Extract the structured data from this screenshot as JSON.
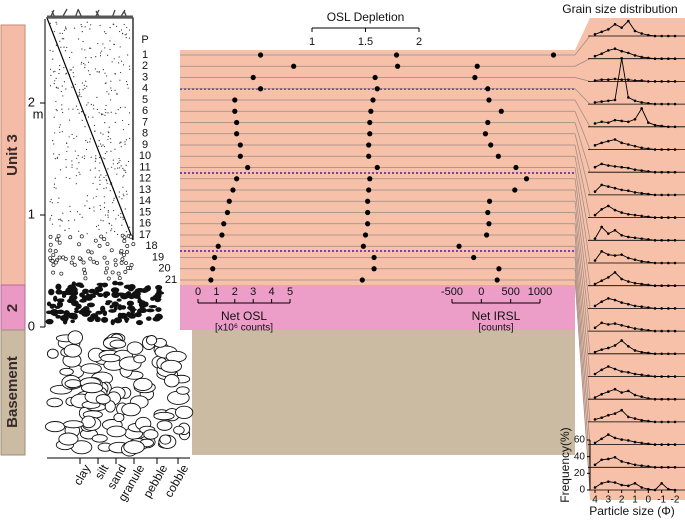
{
  "figure": {
    "unit_labels": [
      "Unit 3",
      "2",
      "Basement"
    ],
    "depth_axis": {
      "ylim": [
        0,
        2.75
      ],
      "yticks": [
        0,
        1,
        2
      ],
      "label": "m"
    },
    "sample_header": "P",
    "sediment_classes": [
      "clay",
      "silt",
      "sand",
      "granule",
      "pebble",
      "cobble"
    ]
  },
  "chart_data": [
    {
      "type": "dot",
      "xlabel": "Net OSL",
      "xunit": "[x10⁶ counts]",
      "categories": [
        "1",
        "2",
        "3",
        "4",
        "5",
        "6",
        "7",
        "8",
        "9",
        "10",
        "11",
        "12",
        "13",
        "14",
        "15",
        "16",
        "17",
        "18",
        "19",
        "20",
        "21"
      ],
      "values": [
        3.4,
        5.2,
        3.0,
        3.4,
        2.0,
        2.0,
        2.1,
        2.1,
        2.3,
        2.3,
        2.7,
        2.1,
        1.9,
        1.7,
        1.6,
        1.4,
        1.3,
        1.1,
        0.9,
        0.8,
        0.7
      ],
      "xlim": [
        0,
        5
      ],
      "xticks": [
        0,
        1,
        2,
        3,
        4,
        5
      ],
      "color": "#000000"
    },
    {
      "type": "dot",
      "title": "OSL Depletion",
      "values": [
        1.79,
        1.8,
        1.59,
        1.61,
        1.57,
        1.55,
        1.54,
        1.54,
        1.53,
        1.53,
        1.61,
        1.54,
        1.53,
        1.52,
        1.52,
        1.52,
        1.5,
        1.48,
        1.58,
        1.58,
        1.47
      ],
      "xlim": [
        1,
        2
      ],
      "xticks": [
        1,
        1.5,
        2
      ],
      "color": "#000000"
    },
    {
      "type": "dot",
      "xlabel": "Net IRSL",
      "xunit": "[counts]",
      "values": [
        1230,
        -70,
        -110,
        110,
        130,
        340,
        110,
        70,
        160,
        290,
        590,
        770,
        570,
        140,
        110,
        130,
        90,
        -380,
        -130,
        300,
        270
      ],
      "xlim": [
        -500,
        1000
      ],
      "xticks": [
        -500,
        0,
        500,
        1000
      ],
      "color": "#000000"
    },
    {
      "type": "line",
      "title": "Grain size distribution",
      "xlabel": "Particle size (Φ)",
      "ylabel": "Frequency(%)",
      "x": [
        4,
        3.5,
        3,
        2.5,
        2,
        1.5,
        1,
        0.5,
        0,
        -0.5,
        -1,
        -1.5,
        -2
      ],
      "xlim": [
        4,
        -2
      ],
      "xticks": [
        4,
        3,
        2,
        1,
        0,
        -1,
        -2
      ],
      "ylim": [
        0,
        60
      ],
      "yticks": [
        0,
        20,
        40,
        60
      ],
      "series": [
        {
          "color": "#000000",
          "values": [
            2,
            5,
            8,
            14,
            10,
            18,
            6,
            3,
            1,
            0,
            0,
            0,
            0
          ]
        },
        {
          "color": "#000000",
          "values": [
            3,
            6,
            10,
            12,
            9,
            7,
            4,
            2,
            1,
            0,
            0,
            0,
            0
          ]
        },
        {
          "color": "#000000",
          "values": [
            1,
            2,
            2,
            3,
            2,
            2,
            1,
            1,
            0,
            0,
            0,
            0,
            0
          ]
        },
        {
          "color": "#000000",
          "values": [
            2,
            3,
            4,
            5,
            55,
            8,
            4,
            2,
            1,
            0,
            0,
            0,
            0
          ]
        },
        {
          "color": "#000000",
          "values": [
            4,
            6,
            5,
            8,
            7,
            6,
            9,
            22,
            5,
            2,
            1,
            0,
            0
          ]
        },
        {
          "color": "#000000",
          "values": [
            5,
            8,
            10,
            12,
            8,
            6,
            4,
            2,
            1,
            0,
            0,
            0,
            0
          ]
        },
        {
          "color": "#000000",
          "values": [
            6,
            10,
            8,
            7,
            6,
            5,
            3,
            2,
            1,
            0,
            0,
            0,
            0
          ]
        },
        {
          "color": "#000000",
          "values": [
            4,
            12,
            10,
            8,
            6,
            5,
            3,
            2,
            1,
            0,
            0,
            0,
            0
          ]
        },
        {
          "color": "#000000",
          "values": [
            3,
            10,
            14,
            9,
            6,
            4,
            3,
            2,
            1,
            0,
            0,
            0,
            0
          ]
        },
        {
          "color": "#000000",
          "values": [
            2,
            16,
            8,
            12,
            6,
            4,
            3,
            2,
            1,
            0,
            0,
            0,
            0
          ]
        },
        {
          "color": "#000000",
          "values": [
            3,
            14,
            10,
            9,
            10,
            6,
            4,
            2,
            1,
            0,
            0,
            0,
            0
          ]
        },
        {
          "color": "#000000",
          "values": [
            2,
            6,
            10,
            16,
            8,
            5,
            3,
            2,
            1,
            0,
            0,
            0,
            0
          ]
        },
        {
          "color": "#000000",
          "values": [
            3,
            8,
            12,
            10,
            7,
            5,
            3,
            2,
            1,
            0,
            0,
            0,
            0
          ]
        },
        {
          "color": "#000000",
          "values": [
            4,
            10,
            8,
            9,
            7,
            5,
            3,
            2,
            1,
            0,
            0,
            0,
            0
          ]
        },
        {
          "color": "#000000",
          "values": [
            2,
            5,
            7,
            10,
            16,
            9,
            4,
            2,
            1,
            0,
            0,
            0,
            0
          ]
        },
        {
          "color": "#000000",
          "values": [
            3,
            8,
            12,
            9,
            6,
            5,
            3,
            2,
            1,
            0,
            0,
            0,
            0
          ]
        },
        {
          "color": "#000000",
          "values": [
            2,
            6,
            9,
            12,
            8,
            10,
            5,
            3,
            1,
            0,
            0,
            0,
            0
          ]
        },
        {
          "color": "#000000",
          "values": [
            3,
            5,
            8,
            10,
            14,
            6,
            4,
            2,
            1,
            0,
            0,
            0,
            0
          ]
        },
        {
          "color": "#000000",
          "values": [
            2,
            7,
            12,
            8,
            6,
            5,
            3,
            2,
            1,
            0,
            0,
            0,
            0
          ]
        },
        {
          "color": "#000000",
          "values": [
            3,
            9,
            10,
            12,
            7,
            5,
            3,
            2,
            1,
            0,
            0,
            0,
            0
          ]
        },
        {
          "color": "#000000",
          "values": [
            3,
            8,
            10,
            9,
            6,
            5,
            8,
            3,
            1,
            0,
            8,
            1,
            0
          ]
        }
      ]
    }
  ]
}
